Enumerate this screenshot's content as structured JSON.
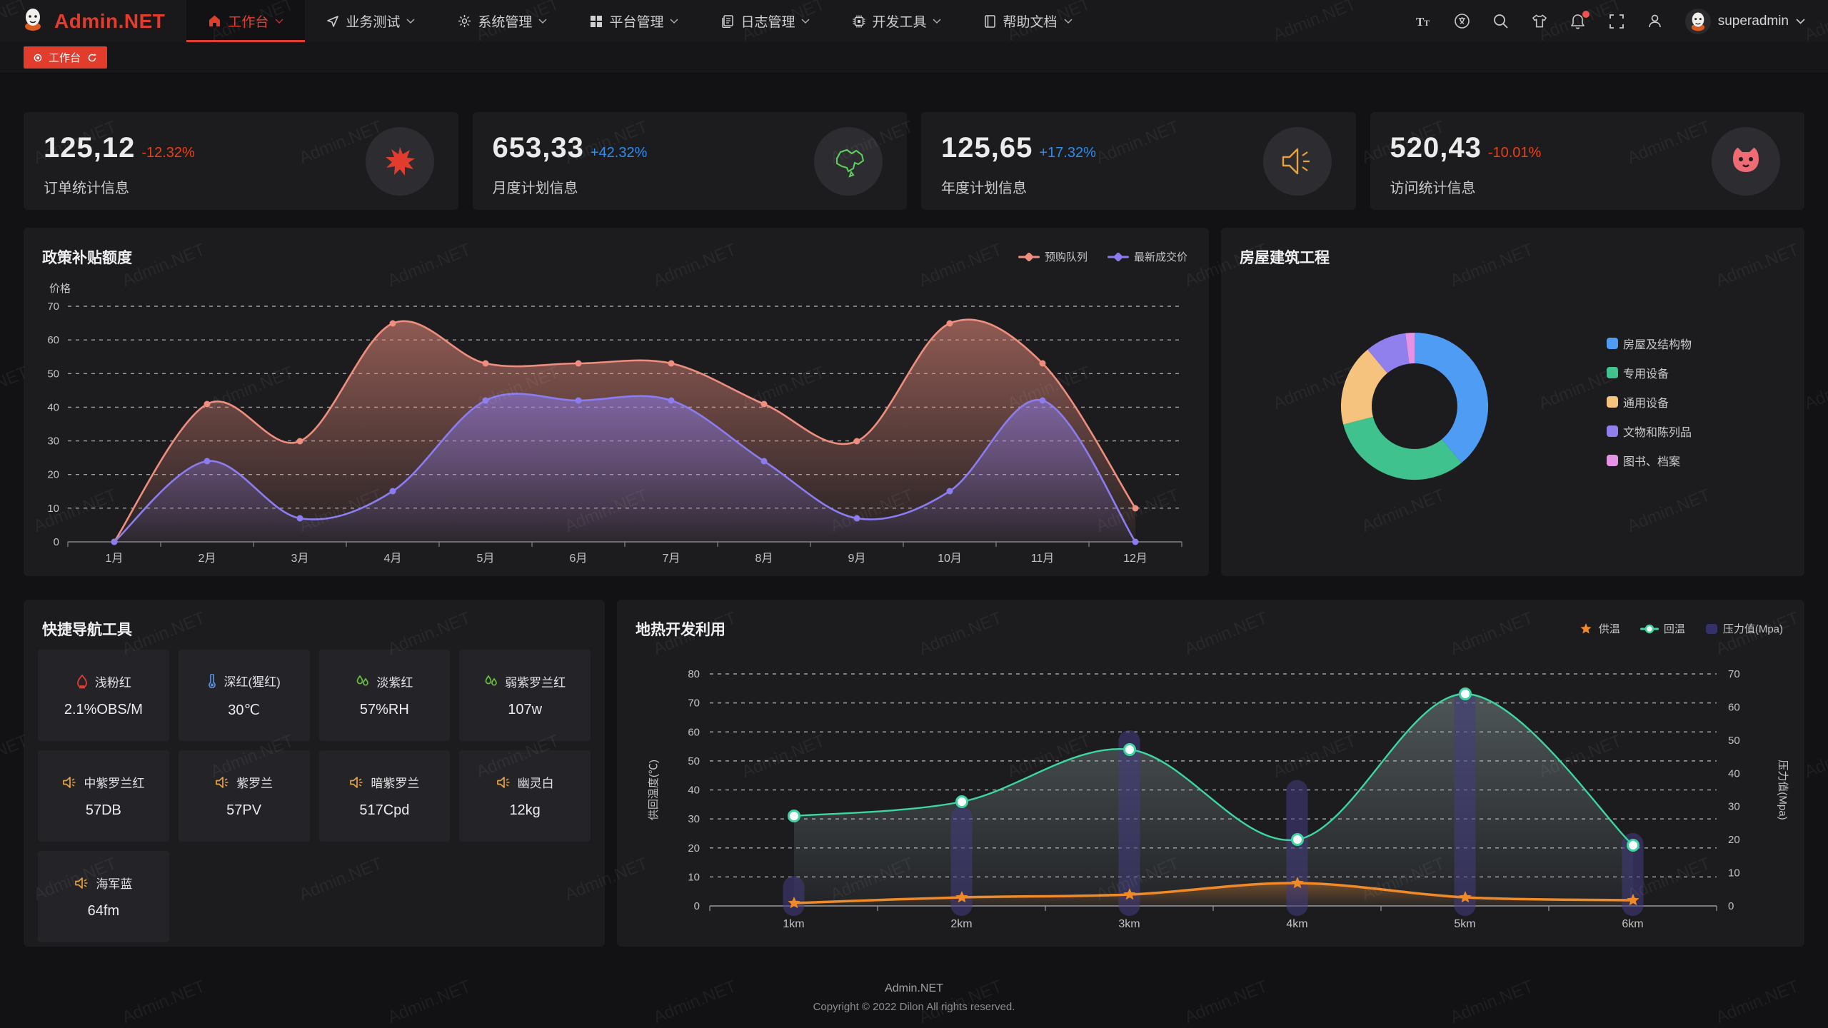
{
  "watermark": "Admin.NET",
  "header": {
    "logo_text": "Admin.NET",
    "nav": [
      {
        "icon": "home",
        "label": "工作台",
        "active": true
      },
      {
        "icon": "send",
        "label": "业务测试",
        "active": false
      },
      {
        "icon": "gear",
        "label": "系统管理",
        "active": false
      },
      {
        "icon": "grid",
        "label": "平台管理",
        "active": false
      },
      {
        "icon": "log",
        "label": "日志管理",
        "active": false
      },
      {
        "icon": "cpu",
        "label": "开发工具",
        "active": false
      },
      {
        "icon": "book",
        "label": "帮助文档",
        "active": false
      }
    ],
    "user_name": "superadmin"
  },
  "tab_bar": {
    "active_tab": "工作台"
  },
  "stat_cards": [
    {
      "value": "125,12",
      "delta": "-12.32%",
      "trend": "down",
      "label": "订单统计信息",
      "icon": "splash"
    },
    {
      "value": "653,33",
      "delta": "+42.32%",
      "trend": "up",
      "label": "月度计划信息",
      "icon": "china-map"
    },
    {
      "value": "125,65",
      "delta": "+17.32%",
      "trend": "up",
      "label": "年度计划信息",
      "icon": "speaker-big"
    },
    {
      "value": "520,43",
      "delta": "-10.01%",
      "trend": "down",
      "label": "访问统计信息",
      "icon": "cat"
    }
  ],
  "quick_nav": {
    "title": "快捷导航工具",
    "items": [
      {
        "icon": "flame",
        "name": "浅粉红",
        "value": "2.1%OBS/M"
      },
      {
        "icon": "thermometer",
        "name": "深红(猩红)",
        "value": "30℃"
      },
      {
        "icon": "drops",
        "name": "淡紫红",
        "value": "57%RH"
      },
      {
        "icon": "drops",
        "name": "弱紫罗兰红",
        "value": "107w"
      },
      {
        "icon": "speaker",
        "name": "中紫罗兰红",
        "value": "57DB"
      },
      {
        "icon": "speaker",
        "name": "紫罗兰",
        "value": "57PV"
      },
      {
        "icon": "speaker",
        "name": "暗紫罗兰",
        "value": "517Cpd"
      },
      {
        "icon": "speaker",
        "name": "幽灵白",
        "value": "12kg"
      },
      {
        "icon": "speaker",
        "name": "海军蓝",
        "value": "64fm"
      }
    ]
  },
  "chart_data": [
    {
      "type": "area",
      "title": "政策补贴额度",
      "ylabel": "价格",
      "ylim": [
        0,
        70
      ],
      "grid": "dashed",
      "legend_position": "top-right",
      "categories": [
        "1月",
        "2月",
        "3月",
        "4月",
        "5月",
        "6月",
        "7月",
        "8月",
        "9月",
        "10月",
        "11月",
        "12月"
      ],
      "series": [
        {
          "name": "预购队列",
          "color": "#ef8e7e",
          "values": [
            0,
            41,
            30,
            65,
            53,
            53,
            53,
            41,
            30,
            65,
            53,
            10
          ]
        },
        {
          "name": "最新成交价",
          "color": "#8b7cf0",
          "values": [
            0,
            24,
            7,
            15,
            42,
            42,
            42,
            24,
            7,
            15,
            42,
            0
          ]
        }
      ]
    },
    {
      "type": "pie",
      "title": "房屋建筑工程",
      "donut": true,
      "legend_position": "right",
      "labels": [
        "房屋及结构物",
        "专用设备",
        "通用设备",
        "文物和陈列品",
        "图书、档案"
      ],
      "values": [
        39,
        32,
        18,
        9,
        2
      ],
      "colors": [
        "#4f9cf5",
        "#3fc28e",
        "#f6c37e",
        "#9080ee",
        "#e493e5"
      ]
    },
    {
      "type": "line+bar",
      "title": "地热开发利用",
      "ylabel_left": "供回温度(℃)",
      "ylabel_right": "压力值(Mpa)",
      "ylim_left": [
        0,
        80
      ],
      "ylim_right": [
        0,
        70
      ],
      "grid": "dashed",
      "legend_position": "top-right",
      "categories": [
        "1km",
        "2km",
        "3km",
        "4km",
        "5km",
        "6km"
      ],
      "series": [
        {
          "name": "供温",
          "kind": "line",
          "marker": "star",
          "axis": "left",
          "color": "#f08a28",
          "values": [
            1,
            3,
            4,
            8,
            3,
            2
          ]
        },
        {
          "name": "回温",
          "kind": "line",
          "marker": "circle",
          "axis": "left",
          "color": "#3ed6a0",
          "values": [
            31,
            36,
            54,
            23,
            73,
            21
          ]
        },
        {
          "name": "压力值(Mpa)",
          "kind": "bar",
          "axis": "right",
          "color": "#433d80",
          "values": [
            9,
            30,
            53,
            38,
            65,
            22
          ]
        }
      ]
    }
  ],
  "footer": {
    "line1": "Admin.NET",
    "line2": "Copyright © 2022 Dilon All rights reserved."
  }
}
